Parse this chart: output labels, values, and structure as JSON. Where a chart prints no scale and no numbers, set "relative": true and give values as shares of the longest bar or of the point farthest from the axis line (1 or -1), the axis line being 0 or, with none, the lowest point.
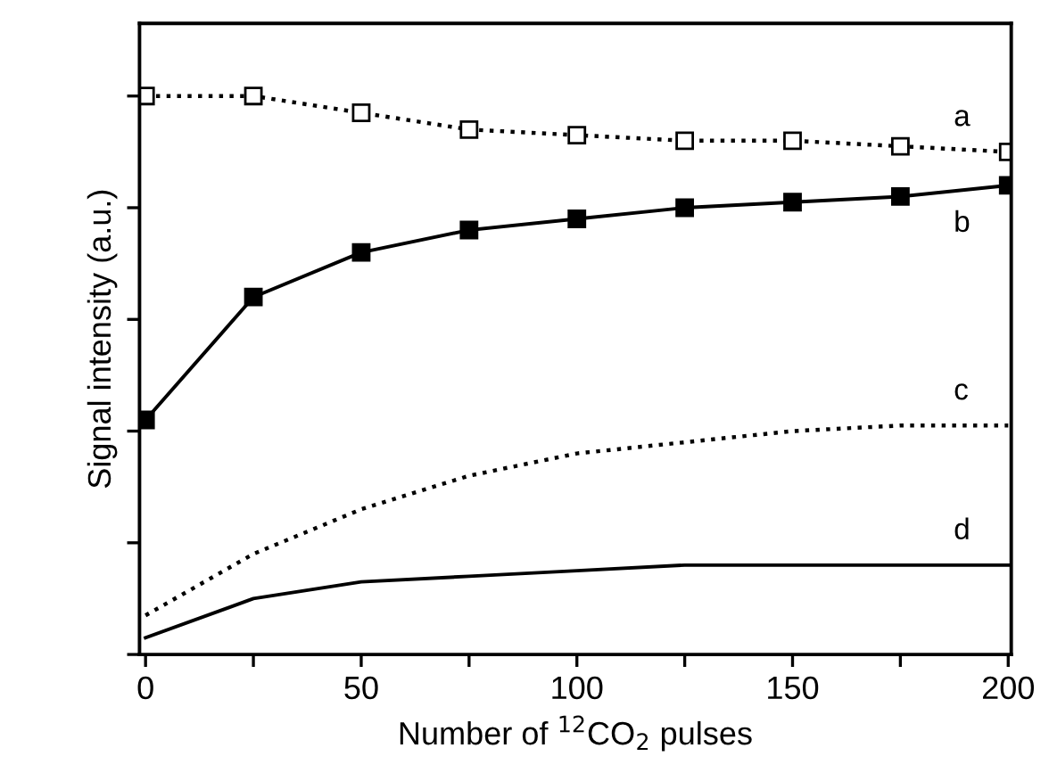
{
  "chart_data": {
    "type": "line",
    "relative": true,
    "xlabel": "Number of $^{12}$CO$_{2}$ pulses",
    "ylabel": "Signal intensity (a.u.)",
    "x": [
      0,
      25,
      50,
      75,
      100,
      125,
      150,
      175,
      200
    ],
    "xlim": [
      -1.4,
      200.7
    ],
    "xticks": [
      0,
      {
        "value": 25,
        "label": null
      },
      50,
      {
        "value": 75,
        "label": null
      },
      100,
      {
        "value": 125,
        "label": null
      },
      150,
      {
        "value": 175,
        "label": null
      },
      200
    ],
    "tick_labels": "x",
    "grid": false,
    "legend": false,
    "series": [
      {
        "name": "a",
        "color": "#000000",
        "marker": "square",
        "line_style": "dotted",
        "values": [
          1.0,
          1.0,
          0.97,
          0.94,
          0.93,
          0.92,
          0.92,
          0.91,
          0.9
        ]
      },
      {
        "name": "b",
        "color": "#000000",
        "marker": "square",
        "line_style": "solid",
        "values": [
          0.42,
          0.64,
          0.72,
          0.76,
          0.78,
          0.8,
          0.81,
          0.82,
          0.84
        ]
      },
      {
        "name": "c",
        "color": "#000000",
        "marker": "none",
        "line_style": "dotted",
        "values": [
          0.07,
          0.18,
          0.26,
          0.32,
          0.36,
          0.38,
          0.4,
          0.41,
          0.41
        ]
      },
      {
        "name": "d",
        "color": "#000000",
        "marker": "none",
        "line_style": "solid",
        "values": [
          0.03,
          0.1,
          0.13,
          0.14,
          0.15,
          0.16,
          0.16,
          0.16,
          0.16
        ]
      }
    ]
  }
}
